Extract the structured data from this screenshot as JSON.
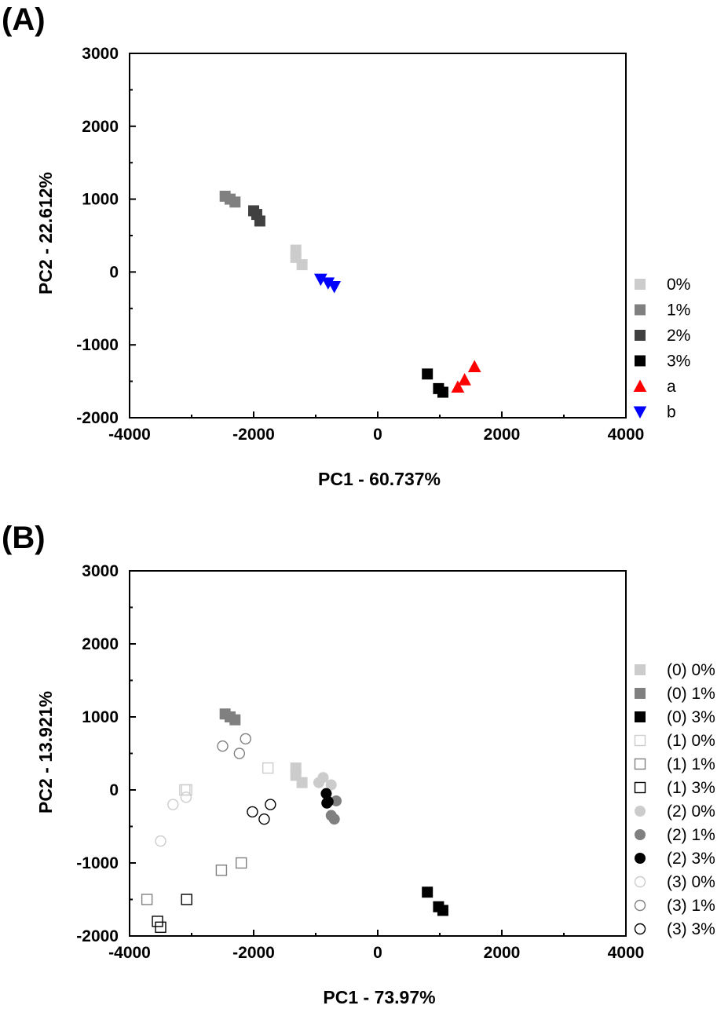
{
  "chart_data": [
    {
      "type": "scatter",
      "panel_label": "(A)",
      "xlabel": "PC1 - 60.737%",
      "ylabel": "PC2 - 22.612%",
      "xlim": [
        -4000,
        4000
      ],
      "ylim": [
        -2000,
        3000
      ],
      "xticks": [
        -4000,
        -2000,
        0,
        2000,
        4000
      ],
      "yticks": [
        -2000,
        -1000,
        0,
        1000,
        2000,
        3000
      ],
      "legend_position": "right",
      "grid": false,
      "series": [
        {
          "name": "0%",
          "marker": "square",
          "fill": "#cccccc",
          "stroke": "#cccccc",
          "points": [
            [
              -1320,
              300
            ],
            [
              -1320,
              200
            ],
            [
              -1220,
              100
            ]
          ]
        },
        {
          "name": "1%",
          "marker": "square",
          "fill": "#808080",
          "stroke": "#808080",
          "points": [
            [
              -2460,
              1040
            ],
            [
              -2380,
              1000
            ],
            [
              -2300,
              960
            ]
          ]
        },
        {
          "name": "2%",
          "marker": "square",
          "fill": "#404040",
          "stroke": "#404040",
          "points": [
            [
              -2000,
              840
            ],
            [
              -1950,
              790
            ],
            [
              -1900,
              700
            ]
          ]
        },
        {
          "name": "3%",
          "marker": "square",
          "fill": "#000000",
          "stroke": "#000000",
          "points": [
            [
              800,
              -1400
            ],
            [
              980,
              -1600
            ],
            [
              1050,
              -1650
            ]
          ]
        },
        {
          "name": "a",
          "marker": "triangle-up",
          "fill": "#ff0000",
          "stroke": "#ff0000",
          "points": [
            [
              1560,
              -1300
            ],
            [
              1400,
              -1480
            ],
            [
              1290,
              -1580
            ]
          ]
        },
        {
          "name": "b",
          "marker": "triangle-down",
          "fill": "#0000ff",
          "stroke": "#0000ff",
          "points": [
            [
              -920,
              -100
            ],
            [
              -800,
              -150
            ],
            [
              -700,
              -200
            ]
          ]
        }
      ]
    },
    {
      "type": "scatter",
      "panel_label": "(B)",
      "xlabel": "PC1 - 73.97%",
      "ylabel": "PC2 - 13.921%",
      "xlim": [
        -4000,
        4000
      ],
      "ylim": [
        -2000,
        3000
      ],
      "xticks": [
        -4000,
        -2000,
        0,
        2000,
        4000
      ],
      "yticks": [
        -2000,
        -1000,
        0,
        1000,
        2000,
        3000
      ],
      "legend_position": "right",
      "grid": false,
      "series": [
        {
          "name": "(0) 0%",
          "marker": "square",
          "fill": "#cccccc",
          "stroke": "#cccccc",
          "points": [
            [
              -1320,
              300
            ],
            [
              -1320,
              200
            ],
            [
              -1220,
              100
            ]
          ]
        },
        {
          "name": "(0) 1%",
          "marker": "square",
          "fill": "#808080",
          "stroke": "#808080",
          "points": [
            [
              -2460,
              1040
            ],
            [
              -2380,
              1000
            ],
            [
              -2300,
              960
            ]
          ]
        },
        {
          "name": "(0) 3%",
          "marker": "square",
          "fill": "#000000",
          "stroke": "#000000",
          "points": [
            [
              800,
              -1400
            ],
            [
              980,
              -1600
            ],
            [
              1050,
              -1650
            ]
          ]
        },
        {
          "name": "(1) 0%",
          "marker": "square-open",
          "fill": "none",
          "stroke": "#cccccc",
          "points": [
            [
              -1770,
              300
            ],
            [
              -3080,
              0
            ],
            [
              -3110,
              0
            ]
          ]
        },
        {
          "name": "(1) 1%",
          "marker": "square-open",
          "fill": "none",
          "stroke": "#808080",
          "points": [
            [
              -2520,
              -1100
            ],
            [
              -2200,
              -1000
            ],
            [
              -3720,
              -1500
            ]
          ]
        },
        {
          "name": "(1) 3%",
          "marker": "square-open",
          "fill": "none",
          "stroke": "#000000",
          "points": [
            [
              -3550,
              -1800
            ],
            [
              -3500,
              -1880
            ],
            [
              -3080,
              -1500
            ]
          ]
        },
        {
          "name": "(2) 0%",
          "marker": "circle",
          "fill": "#cccccc",
          "stroke": "#cccccc",
          "points": [
            [
              -950,
              100
            ],
            [
              -880,
              170
            ],
            [
              -750,
              70
            ]
          ]
        },
        {
          "name": "(2) 1%",
          "marker": "circle",
          "fill": "#808080",
          "stroke": "#808080",
          "points": [
            [
              -670,
              -150
            ],
            [
              -750,
              -350
            ],
            [
              -700,
              -400
            ]
          ]
        },
        {
          "name": "(2) 3%",
          "marker": "circle",
          "fill": "#000000",
          "stroke": "#000000",
          "points": [
            [
              -830,
              -50
            ],
            [
              -820,
              -180
            ],
            [
              -800,
              -160
            ]
          ]
        },
        {
          "name": "(3) 0%",
          "marker": "circle-open",
          "fill": "none",
          "stroke": "#cccccc",
          "points": [
            [
              -3300,
              -200
            ],
            [
              -3090,
              -100
            ],
            [
              -3500,
              -700
            ]
          ]
        },
        {
          "name": "(3) 1%",
          "marker": "circle-open",
          "fill": "none",
          "stroke": "#808080",
          "points": [
            [
              -2500,
              600
            ],
            [
              -2230,
              500
            ],
            [
              -2130,
              700
            ]
          ]
        },
        {
          "name": "(3) 3%",
          "marker": "circle-open",
          "fill": "none",
          "stroke": "#000000",
          "points": [
            [
              -2020,
              -300
            ],
            [
              -1830,
              -400
            ],
            [
              -1730,
              -200
            ]
          ]
        }
      ]
    }
  ]
}
